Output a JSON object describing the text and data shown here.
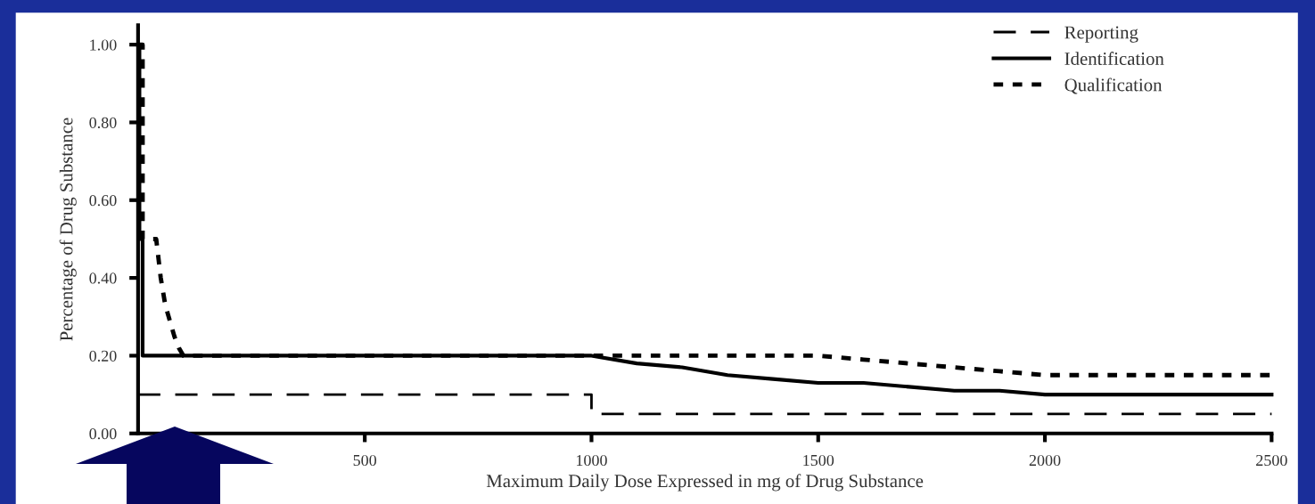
{
  "chart_data": {
    "type": "line",
    "xlabel": "Maximum Daily Dose Expressed in mg of Drug Substance",
    "ylabel": "Percentage of Drug Substance",
    "xlim": [
      0,
      2500
    ],
    "xticks": [
      500,
      1000,
      1500,
      2000,
      2500
    ],
    "ylim": [
      0,
      1.05
    ],
    "yticks": [
      {
        "value": 0,
        "label": "0.00"
      },
      {
        "value": 0.2,
        "label": "0.20"
      },
      {
        "value": 0.4,
        "label": "0.40"
      },
      {
        "value": 0.6,
        "label": "0.60"
      },
      {
        "value": 0.8,
        "label": "0.80"
      },
      {
        "value": 1.0,
        "label": "1.00"
      }
    ],
    "legend": "top right",
    "grid": false,
    "series": [
      {
        "name": "Reporting",
        "color": "#000000",
        "line_style": "dashed",
        "x": [
          0,
          1000,
          1000,
          2500
        ],
        "values": [
          0.1,
          0.1,
          0.05,
          0.05
        ]
      },
      {
        "name": "Identification",
        "color": "#000000",
        "line_style": "solid",
        "x": [
          0,
          3,
          3,
          10,
          10,
          1000,
          1100,
          1200,
          1300,
          1400,
          1500,
          1600,
          1700,
          1800,
          1900,
          2000,
          2500
        ],
        "values": [
          1.0,
          1.0,
          0.5,
          0.5,
          0.2,
          0.2,
          0.18,
          0.17,
          0.15,
          0.14,
          0.13,
          0.13,
          0.12,
          0.11,
          0.11,
          0.1,
          0.1
        ]
      },
      {
        "name": "Qualification",
        "color": "#000000",
        "line_style": "dotted",
        "x": [
          0,
          10,
          10,
          40,
          50,
          60,
          70,
          80,
          90,
          100,
          1500,
          1600,
          1700,
          1800,
          1900,
          2000,
          2500
        ],
        "values": [
          1.0,
          1.0,
          0.5,
          0.5,
          0.4,
          0.33,
          0.29,
          0.25,
          0.22,
          0.2,
          0.2,
          0.19,
          0.18,
          0.17,
          0.16,
          0.15,
          0.15
        ]
      }
    ]
  }
}
